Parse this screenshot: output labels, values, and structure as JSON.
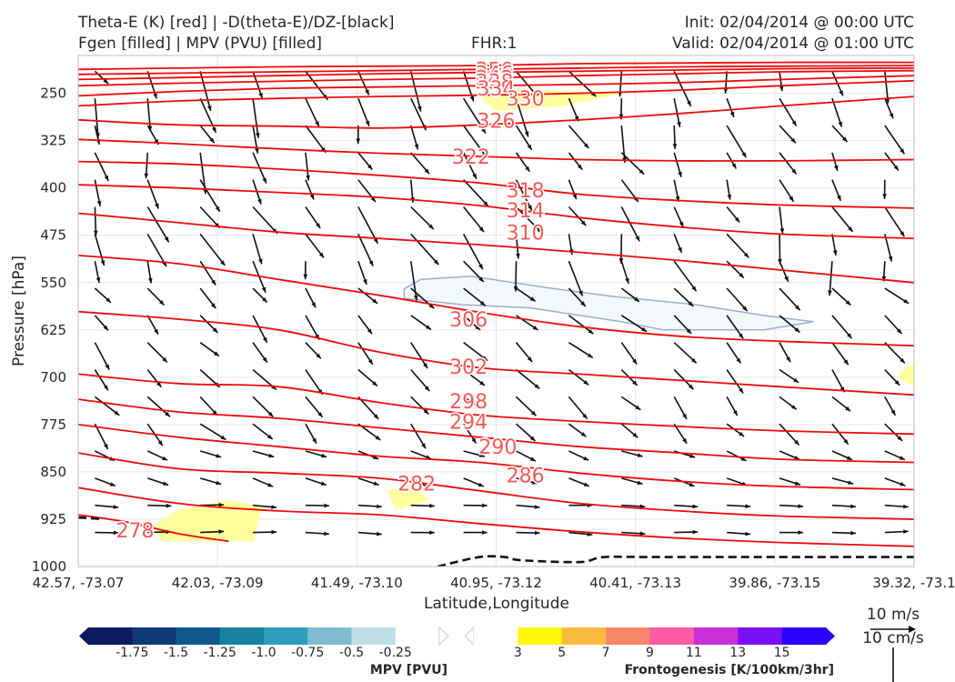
{
  "header": {
    "title_left_1": "Theta-E (K) [red] | -D(theta-E)/DZ-[black]",
    "title_left_2": "Fgen [filled] | MPV (PVU) [filled]",
    "fhr": "FHR:1",
    "init": "Init: 02/04/2014 @ 00:00 UTC",
    "valid": "Valid: 02/04/2014 @ 01:00 UTC"
  },
  "chart_data": {
    "type": "cross-section",
    "xlabel": "Latitude,Longitude",
    "ylabel": "Pressure [hPa]",
    "x_ticks": [
      "42.57, -73.07",
      "42.03, -73.09",
      "41.49, -73.10",
      "40.95, -73.12",
      "40.41, -73.13",
      "39.86, -73.15",
      "39.32, -73.1"
    ],
    "y_ticks": [
      250,
      325,
      400,
      475,
      550,
      625,
      700,
      775,
      850,
      925,
      1000
    ],
    "ylim": [
      1000,
      190
    ],
    "y_reversed": true,
    "theta_e_contours": [
      {
        "label": "350",
        "values": [
          [
            0,
            212
          ],
          [
            12,
            210
          ],
          [
            24,
            208
          ],
          [
            36,
            207
          ],
          [
            48,
            206
          ],
          [
            60,
            203
          ],
          [
            72,
            202
          ],
          [
            84,
            201
          ],
          [
            100,
            201
          ]
        ]
      },
      {
        "label": "346",
        "values": [
          [
            0,
            220
          ],
          [
            12,
            218
          ],
          [
            24,
            216
          ],
          [
            36,
            214
          ],
          [
            48,
            212
          ],
          [
            60,
            210
          ],
          [
            72,
            208
          ],
          [
            84,
            207
          ],
          [
            100,
            206
          ]
        ]
      },
      {
        "label": "342",
        "values": [
          [
            0,
            228
          ],
          [
            12,
            225
          ],
          [
            24,
            222
          ],
          [
            36,
            219
          ],
          [
            48,
            217
          ],
          [
            60,
            215
          ],
          [
            72,
            213
          ],
          [
            84,
            211
          ],
          [
            100,
            210
          ]
        ]
      },
      {
        "label": "338",
        "values": [
          [
            0,
            238
          ],
          [
            12,
            234
          ],
          [
            24,
            231
          ],
          [
            36,
            228
          ],
          [
            48,
            226
          ],
          [
            60,
            222
          ],
          [
            72,
            219
          ],
          [
            84,
            216
          ],
          [
            100,
            214
          ]
        ]
      },
      {
        "label": "334",
        "values": [
          [
            0,
            254
          ],
          [
            12,
            247
          ],
          [
            24,
            242
          ],
          [
            36,
            240
          ],
          [
            48,
            238
          ],
          [
            60,
            236
          ],
          [
            72,
            233
          ],
          [
            84,
            228
          ],
          [
            100,
            222
          ]
        ]
      },
      {
        "label": "330",
        "values": [
          [
            0,
            270
          ],
          [
            12,
            262
          ],
          [
            24,
            258
          ],
          [
            36,
            255
          ],
          [
            48,
            253
          ],
          [
            60,
            250
          ],
          [
            72,
            245
          ],
          [
            84,
            238
          ],
          [
            100,
            230
          ]
        ]
      },
      {
        "label": "326",
        "values": [
          [
            0,
            292
          ],
          [
            12,
            300
          ],
          [
            24,
            302
          ],
          [
            36,
            305
          ],
          [
            48,
            300
          ],
          [
            60,
            292
          ],
          [
            72,
            282
          ],
          [
            84,
            270
          ],
          [
            100,
            255
          ]
        ]
      },
      {
        "label": "322",
        "values": [
          [
            0,
            323
          ],
          [
            12,
            330
          ],
          [
            24,
            338
          ],
          [
            36,
            345
          ],
          [
            48,
            350
          ],
          [
            60,
            355
          ],
          [
            72,
            357
          ],
          [
            84,
            357
          ],
          [
            100,
            355
          ]
        ]
      },
      {
        "label": "318",
        "values": [
          [
            0,
            358
          ],
          [
            12,
            362
          ],
          [
            24,
            370
          ],
          [
            36,
            380
          ],
          [
            48,
            392
          ],
          [
            60,
            410
          ],
          [
            72,
            420
          ],
          [
            84,
            427
          ],
          [
            100,
            432
          ]
        ]
      },
      {
        "label": "314",
        "values": [
          [
            0,
            395
          ],
          [
            12,
            400
          ],
          [
            24,
            407
          ],
          [
            36,
            415
          ],
          [
            48,
            428
          ],
          [
            60,
            447
          ],
          [
            72,
            462
          ],
          [
            84,
            473
          ],
          [
            100,
            480
          ]
        ]
      },
      {
        "label": "310",
        "values": [
          [
            0,
            440
          ],
          [
            12,
            455
          ],
          [
            24,
            470
          ],
          [
            36,
            480
          ],
          [
            48,
            490
          ],
          [
            60,
            502
          ],
          [
            72,
            515
          ],
          [
            84,
            530
          ],
          [
            100,
            550
          ]
        ]
      },
      {
        "label": "306",
        "values": [
          [
            0,
            507
          ],
          [
            12,
            520
          ],
          [
            24,
            545
          ],
          [
            36,
            570
          ],
          [
            48,
            597
          ],
          [
            60,
            620
          ],
          [
            72,
            635
          ],
          [
            84,
            643
          ],
          [
            100,
            650
          ]
        ]
      },
      {
        "label": "302",
        "values": [
          [
            0,
            596
          ],
          [
            12,
            608
          ],
          [
            24,
            625
          ],
          [
            36,
            660
          ],
          [
            48,
            685
          ],
          [
            60,
            695
          ],
          [
            72,
            705
          ],
          [
            84,
            715
          ],
          [
            100,
            728
          ]
        ]
      },
      {
        "label": "298",
        "values": [
          [
            0,
            695
          ],
          [
            12,
            710
          ],
          [
            24,
            715
          ],
          [
            36,
            740
          ],
          [
            48,
            760
          ],
          [
            60,
            770
          ],
          [
            72,
            778
          ],
          [
            84,
            785
          ],
          [
            100,
            790
          ]
        ]
      },
      {
        "label": "294",
        "values": [
          [
            0,
            735
          ],
          [
            12,
            755
          ],
          [
            24,
            765
          ],
          [
            36,
            780
          ],
          [
            48,
            795
          ],
          [
            60,
            810
          ],
          [
            72,
            820
          ],
          [
            84,
            830
          ],
          [
            100,
            835
          ]
        ]
      },
      {
        "label": "290",
        "values": [
          [
            0,
            775
          ],
          [
            12,
            795
          ],
          [
            24,
            810
          ],
          [
            36,
            825
          ],
          [
            48,
            835
          ],
          [
            60,
            852
          ],
          [
            72,
            865
          ],
          [
            84,
            873
          ],
          [
            100,
            878
          ]
        ]
      },
      {
        "label": "286",
        "values": [
          [
            0,
            820
          ],
          [
            12,
            845
          ],
          [
            24,
            852
          ],
          [
            36,
            860
          ],
          [
            48,
            880
          ],
          [
            60,
            900
          ],
          [
            72,
            912
          ],
          [
            84,
            920
          ],
          [
            100,
            925
          ]
        ]
      },
      {
        "label": "282",
        "values": [
          [
            0,
            875
          ],
          [
            12,
            900
          ],
          [
            24,
            912
          ],
          [
            36,
            918
          ],
          [
            48,
            932
          ],
          [
            60,
            945
          ],
          [
            72,
            955
          ],
          [
            84,
            962
          ],
          [
            100,
            968
          ]
        ]
      },
      {
        "label": "278",
        "values": [
          [
            0,
            918
          ],
          [
            6,
            930
          ],
          [
            12,
            948
          ],
          [
            18,
            960
          ]
        ]
      }
    ],
    "theta_e_labels": [
      {
        "text": "350",
        "x": 49.8,
        "p": 212
      },
      {
        "text": "346",
        "x": 49.8,
        "p": 218
      },
      {
        "text": "342",
        "x": 49.8,
        "p": 225
      },
      {
        "text": "338",
        "x": 49.8,
        "p": 231
      },
      {
        "text": "334",
        "x": 50.0,
        "p": 242
      },
      {
        "text": "330",
        "x": 53.5,
        "p": 258
      },
      {
        "text": "326",
        "x": 50.0,
        "p": 293
      },
      {
        "text": "322",
        "x": 47.0,
        "p": 350
      },
      {
        "text": "318",
        "x": 53.5,
        "p": 403
      },
      {
        "text": "314",
        "x": 53.5,
        "p": 435
      },
      {
        "text": "310",
        "x": 53.5,
        "p": 470
      },
      {
        "text": "306",
        "x": 46.7,
        "p": 608
      },
      {
        "text": "302",
        "x": 46.7,
        "p": 683
      },
      {
        "text": "298",
        "x": 46.7,
        "p": 738
      },
      {
        "text": "294",
        "x": 46.7,
        "p": 770
      },
      {
        "text": "290",
        "x": 50.2,
        "p": 810
      },
      {
        "text": "286",
        "x": 53.5,
        "p": 855
      },
      {
        "text": "282",
        "x": 40.5,
        "p": 868
      },
      {
        "text": "278",
        "x": 6.8,
        "p": 942
      }
    ],
    "dthetae_dz_contours": [
      {
        "style": "dashed",
        "values": [
          [
            0,
            922
          ],
          [
            3,
            925
          ]
        ]
      },
      {
        "style": "dashed",
        "values": [
          [
            43,
            1000
          ],
          [
            48,
            985
          ],
          [
            51,
            985
          ],
          [
            53,
            990
          ],
          [
            60,
            993
          ],
          [
            63,
            985
          ],
          [
            70,
            985
          ],
          [
            100,
            985
          ]
        ]
      }
    ],
    "fgen_regions": [
      {
        "range": "3-5",
        "color": "#ffff9e",
        "points": [
          [
            12,
            910
          ],
          [
            18,
            895
          ],
          [
            22,
            905
          ],
          [
            21,
            960
          ],
          [
            10,
            960
          ],
          [
            9,
            935
          ]
        ]
      },
      {
        "range": "3-5",
        "color": "#ffff9e",
        "points": [
          [
            37,
            880
          ],
          [
            40,
            870
          ],
          [
            42,
            895
          ],
          [
            38,
            910
          ]
        ]
      },
      {
        "range": "3-5",
        "color": "#ffff9e",
        "points": [
          [
            48,
            255
          ],
          [
            52,
            244
          ],
          [
            66,
            248
          ],
          [
            58,
            270
          ],
          [
            50,
            278
          ]
        ]
      },
      {
        "range": "3-5",
        "color": "#ffff9e",
        "points": [
          [
            99,
            685
          ],
          [
            100,
            680
          ],
          [
            100,
            715
          ],
          [
            98,
            700
          ]
        ]
      }
    ],
    "mpv_regions": [
      {
        "range": "-0.25-0",
        "color": "#f3f9fa",
        "points": [
          [
            39,
            560
          ],
          [
            41,
            545
          ],
          [
            47,
            540
          ],
          [
            56,
            558
          ],
          [
            64,
            572
          ],
          [
            74,
            585
          ],
          [
            82,
            602
          ],
          [
            88,
            612
          ],
          [
            82,
            625
          ],
          [
            70,
            625
          ],
          [
            65,
            612
          ],
          [
            54,
            590
          ],
          [
            46,
            585
          ],
          [
            39,
            575
          ]
        ]
      }
    ],
    "mpv_colorbar": {
      "label": "MPV [PVU]",
      "ticks": [
        "-1.75",
        "-1.5",
        "-1.25",
        "-1.0",
        "-0.75",
        "-0.5",
        "-0.25"
      ],
      "colors": [
        "#0b1b5e",
        "#0e3a75",
        "#0e5a8c",
        "#16829f",
        "#2f9dbd",
        "#7fbcd1",
        "#bfdde6",
        "#ffffff"
      ]
    },
    "fgen_colorbar": {
      "label": "Frontogenesis [K/100km/3hr]",
      "ticks": [
        "3",
        "5",
        "7",
        "9",
        "11",
        "13",
        "15"
      ],
      "colors": [
        "#ffffff",
        "#fff70a",
        "#fcbb40",
        "#f8866a",
        "#ff5ba6",
        "#c930da",
        "#7a0ff5",
        "#2a00ff"
      ]
    },
    "vectors": {
      "description": "wind barbs along cross-section",
      "color": "#111111"
    },
    "vector_keys": [
      "10 m/s",
      "10 cm/s"
    ]
  }
}
